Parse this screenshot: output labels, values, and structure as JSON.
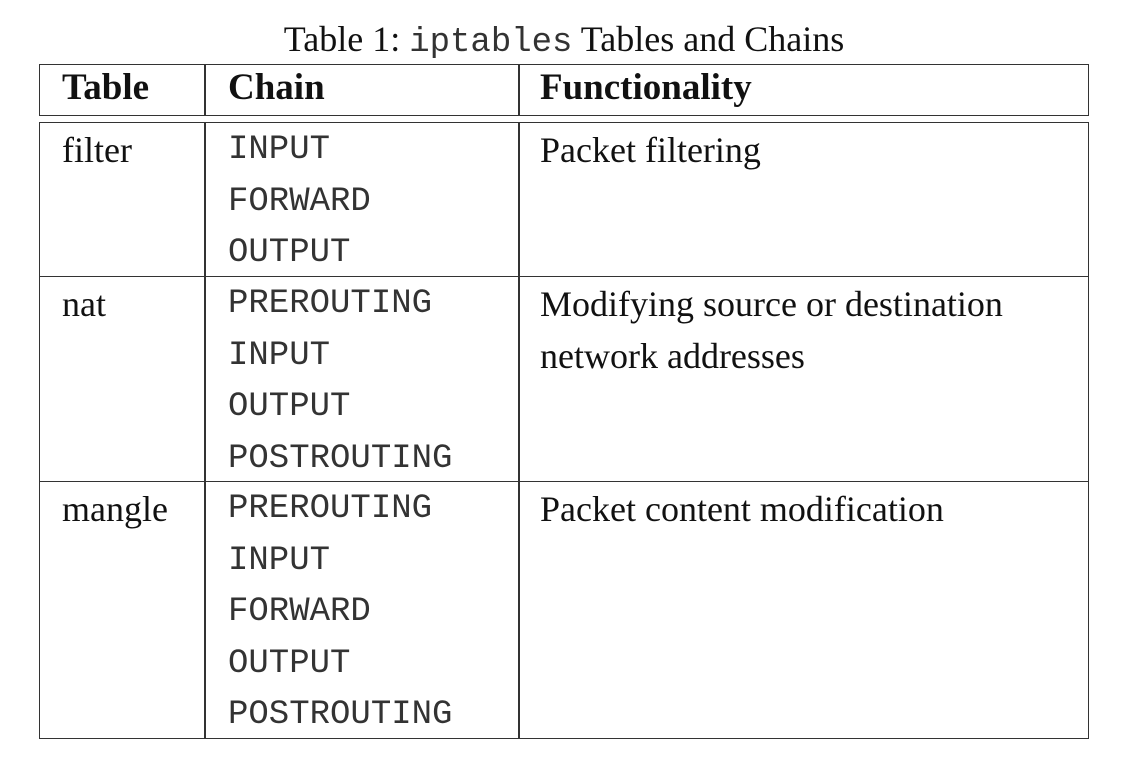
{
  "caption": {
    "prefix": "Table 1: ",
    "code": "iptables",
    "suffix": " Tables and Chains"
  },
  "headers": {
    "table": "Table",
    "chain": "Chain",
    "functionality": "Functionality"
  },
  "rows": [
    {
      "table": "filter",
      "chains": [
        "INPUT",
        "FORWARD",
        "OUTPUT"
      ],
      "functionality_lines": [
        "Packet filtering"
      ]
    },
    {
      "table": "nat",
      "chains": [
        "PREROUTING",
        "INPUT",
        "OUTPUT",
        "POSTROUTING"
      ],
      "functionality_lines": [
        "Modifying source or destination",
        "network addresses"
      ]
    },
    {
      "table": "mangle",
      "chains": [
        "PREROUTING",
        "INPUT",
        "FORWARD",
        "OUTPUT",
        "POSTROUTING"
      ],
      "functionality_lines": [
        "Packet content modification"
      ]
    }
  ]
}
